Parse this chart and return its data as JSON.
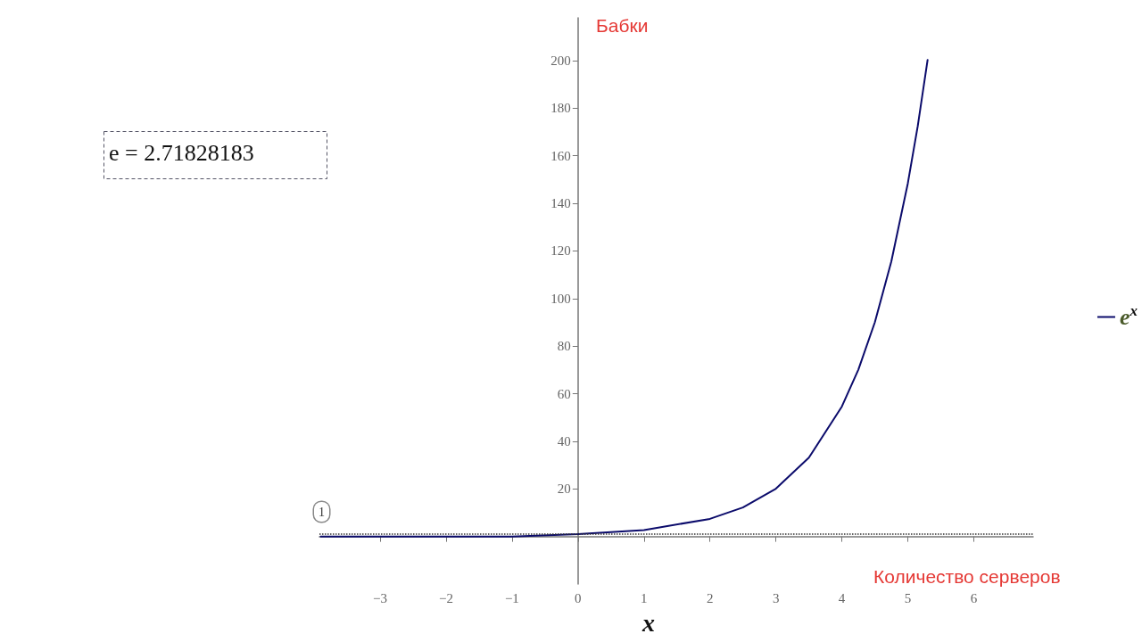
{
  "chart_data": {
    "type": "line",
    "ylabel": "Бабки",
    "xlabel": "Количество серверов",
    "annotations": [
      "e = 2.71828183",
      "x"
    ],
    "x": [
      -3.9,
      -3,
      -2,
      -1,
      0,
      1,
      2,
      2.5,
      3,
      3.5,
      4,
      4.25,
      4.5,
      4.75,
      5,
      5.15,
      5.3
    ],
    "series": [
      {
        "name": "e$^{x}$",
        "color": "#0b0b6b",
        "values": [
          0,
          0,
          0,
          0,
          1,
          2.7,
          7.4,
          12.2,
          20.1,
          33.1,
          54.6,
          70.1,
          90,
          115.6,
          148.4,
          172.4,
          200.3
        ]
      }
    ],
    "xlim": [
      -3.92,
      6.9
    ],
    "xticks": [
      -3,
      -2,
      -1,
      0,
      1,
      2,
      3,
      4,
      5,
      6
    ],
    "ylim": [
      -20,
      218
    ],
    "yticks": [
      20,
      40,
      60,
      80,
      100,
      120,
      140,
      160,
      180,
      200
    ],
    "ref_lines": [
      {
        "axis": "y",
        "value": 1,
        "label": "1",
        "color": "#333333",
        "line_style": "dotted"
      }
    ],
    "grid": false,
    "legend": "right",
    "marker": "none",
    "line_style": "solid"
  }
}
